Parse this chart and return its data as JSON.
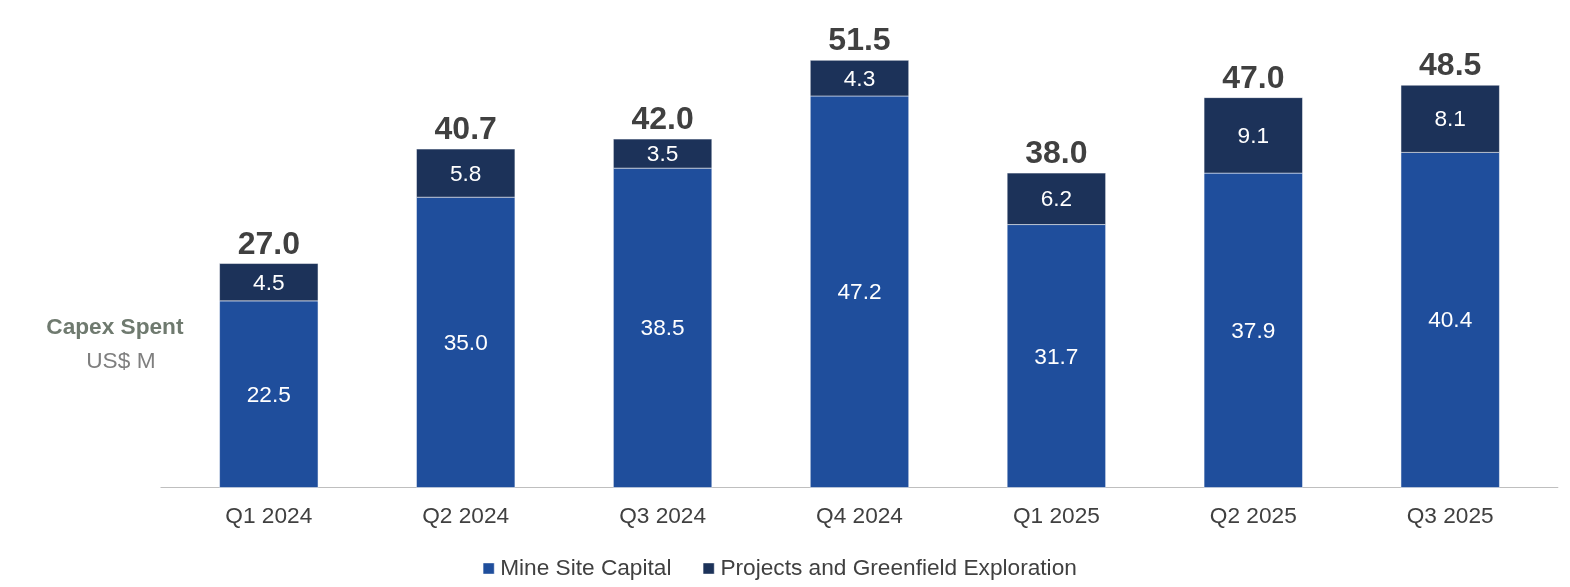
{
  "chart_data": {
    "type": "bar",
    "stacked": true,
    "title": "Capex Spent",
    "subtitle": "US$ M",
    "categories": [
      "Q1 2024",
      "Q2 2024",
      "Q3 2024",
      "Q4 2024",
      "Q1 2025",
      "Q2 2025",
      "Q3 2025"
    ],
    "series": [
      {
        "name": "Mine Site Capital",
        "color": "#1f4e9c",
        "values": [
          22.5,
          35.0,
          38.5,
          47.2,
          31.7,
          37.9,
          40.4
        ],
        "value_labels": [
          "22.5",
          "35.0",
          "38.5",
          "47.2",
          "31.7",
          "37.9",
          "40.4"
        ]
      },
      {
        "name": "Projects and Greenfield Exploration",
        "color": "#1c3259",
        "values": [
          4.5,
          5.8,
          3.5,
          4.3,
          6.2,
          9.1,
          8.1
        ],
        "value_labels": [
          "4.5",
          "5.8",
          "3.5",
          "4.3",
          "6.2",
          "9.1",
          "8.1"
        ]
      }
    ],
    "totals": [
      "27.0",
      "40.7",
      "42.0",
      "51.5",
      "38.0",
      "47.0",
      "48.5"
    ],
    "data_labels": true,
    "legend": "bottom",
    "grid": false
  }
}
